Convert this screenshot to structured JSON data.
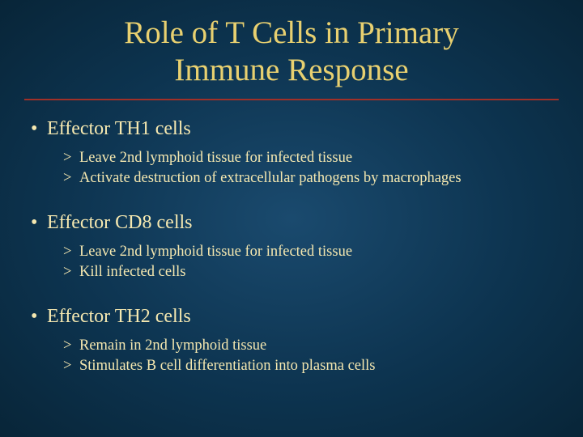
{
  "title_line1": "Role of T Cells in Primary",
  "title_line2": "Immune Response",
  "colors": {
    "title": "#e8d070",
    "body_text": "#f5e8b0",
    "divider": "#a03028",
    "bg_center": "#1a4a6e",
    "bg_edge": "#082538"
  },
  "title_fontsize": 39,
  "main_bullet_fontsize": 24,
  "sub_bullet_fontsize": 18.5,
  "sections": [
    {
      "heading": "Effector TH1 cells",
      "points": [
        "Leave 2nd lymphoid tissue for infected tissue",
        "Activate destruction of extracellular pathogens by macrophages"
      ]
    },
    {
      "heading": "Effector CD8 cells",
      "points": [
        "Leave 2nd lymphoid tissue for infected tissue",
        "Kill infected cells"
      ]
    },
    {
      "heading": "Effector TH2 cells",
      "points": [
        "Remain in 2nd lymphoid tissue",
        "Stimulates B cell differentiation into plasma cells"
      ]
    }
  ]
}
